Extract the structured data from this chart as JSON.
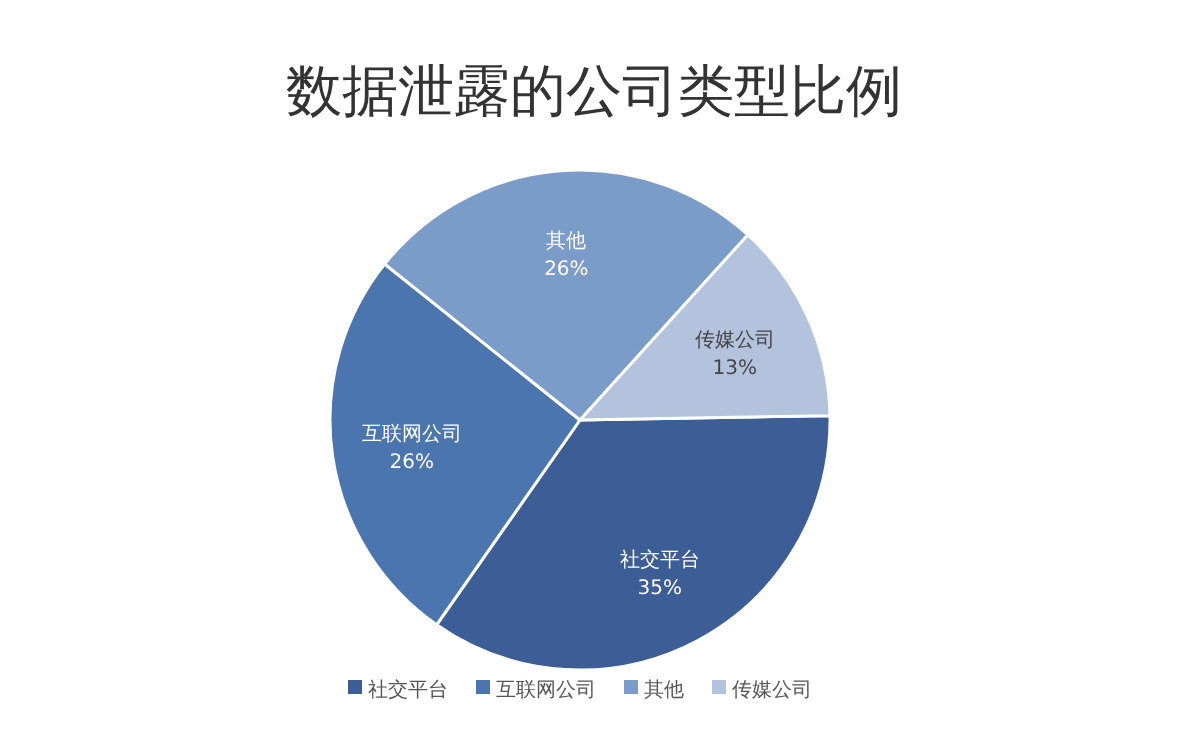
{
  "chart_data": {
    "type": "pie",
    "title": "数据泄露的公司类型比例",
    "categories": [
      "社交平台",
      "互联网公司",
      "其他",
      "传媒公司"
    ],
    "values": [
      35,
      26,
      26,
      13
    ],
    "value_labels": [
      "35%",
      "26%",
      "26%",
      "13%"
    ],
    "colors": [
      "#3c5d95",
      "#4b75ae",
      "#7b9bc9",
      "#b3c3de"
    ],
    "legend": "bottom"
  }
}
